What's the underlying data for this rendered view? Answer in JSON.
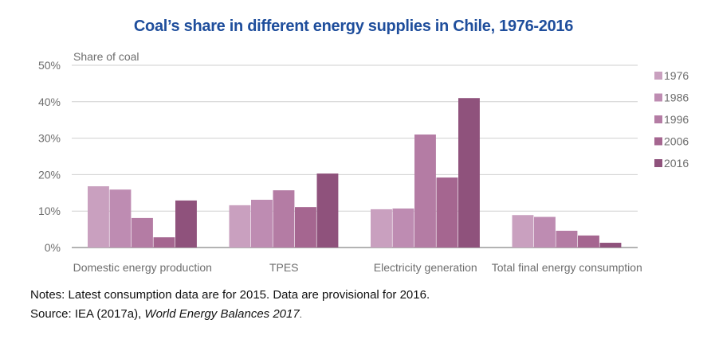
{
  "chart_data": {
    "type": "bar",
    "title": "Coal’s share in different energy supplies in Chile, 1976-2016",
    "ylabel": "Share of coal",
    "xlabel": "",
    "ylim": [
      0,
      50
    ],
    "yticks": [
      0,
      10,
      20,
      30,
      40,
      50
    ],
    "ytick_labels": [
      "0%",
      "10%",
      "20%",
      "30%",
      "40%",
      "50%"
    ],
    "grid": true,
    "legend_position": "right",
    "categories": [
      "Domestic energy production",
      "TPES",
      "Electricity generation",
      "Total final energy consumption"
    ],
    "series": [
      {
        "name": "1976",
        "color": "#c9a0bf",
        "values": [
          16.8,
          11.6,
          10.5,
          8.9
        ]
      },
      {
        "name": "1986",
        "color": "#be8cb2",
        "values": [
          15.9,
          13.1,
          10.7,
          8.4
        ]
      },
      {
        "name": "1996",
        "color": "#b47ca4",
        "values": [
          8.1,
          15.7,
          31.0,
          4.6
        ]
      },
      {
        "name": "2006",
        "color": "#a56690",
        "values": [
          2.8,
          11.1,
          19.2,
          3.3
        ]
      },
      {
        "name": "2016",
        "color": "#8f527c",
        "values": [
          12.9,
          20.3,
          41.0,
          1.3
        ]
      }
    ]
  },
  "notes": {
    "line1": "Notes: Latest consumption data are for 2015. Data are provisional for 2016.",
    "source_prefix": "Source: IEA (2017a), ",
    "source_title": "World Energy Balances 2017",
    "source_suffix": "."
  }
}
